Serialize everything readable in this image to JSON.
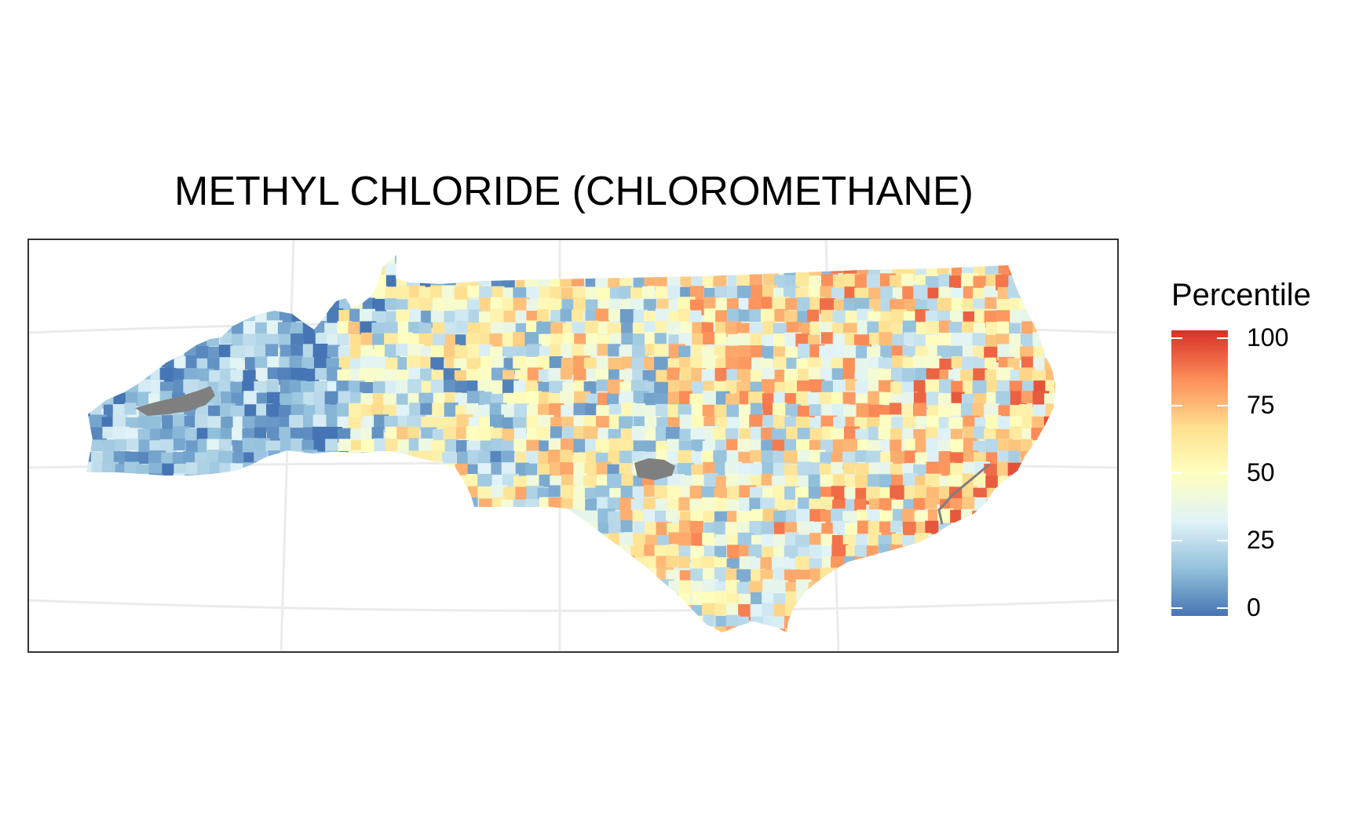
{
  "title": "METHYL CHLORIDE (CHLOROMETHANE)",
  "legend": {
    "title": "Percentile",
    "ticks": [
      {
        "value": 100,
        "label": "100"
      },
      {
        "value": 75,
        "label": "75"
      },
      {
        "value": 50,
        "label": "50"
      },
      {
        "value": 25,
        "label": "25"
      },
      {
        "value": 0,
        "label": "0"
      }
    ],
    "range": [
      0,
      100
    ],
    "scale_colors": [
      "#4575b4",
      "#91bfdb",
      "#e0f3f8",
      "#ffffbf",
      "#fee090",
      "#fc8d59",
      "#d73027"
    ],
    "missing_color": "#7f7f7f"
  },
  "map": {
    "region": "North Carolina",
    "fill_variable": "Percentile",
    "graticule": true
  }
}
